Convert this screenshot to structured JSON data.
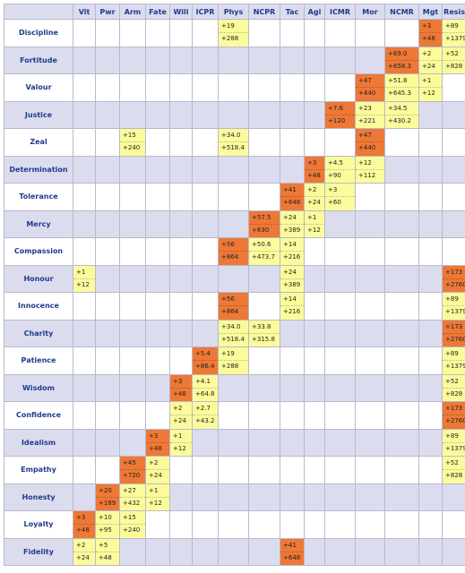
{
  "columns": [
    "Vit",
    "Pwr",
    "Arm",
    "Fate",
    "Will",
    "ICPR",
    "Phys",
    "NCPR",
    "Tac",
    "Agi",
    "ICMR",
    "Mor",
    "NCMR",
    "Mgt",
    "Resist"
  ],
  "colors": {
    "low": "#fbfb9c",
    "high": "#ee7836",
    "header_bg": "#dcdcef",
    "header_text": "#1e3c8c"
  },
  "rows": [
    {
      "name": "Discipline",
      "cells": [
        {
          "col": 6,
          "top": "+19",
          "bottom": "+288",
          "level": "low"
        },
        {
          "col": 13,
          "top": "+3",
          "bottom": "+48",
          "level": "high"
        },
        {
          "col": 14,
          "top": "+89",
          "bottom": "+1379",
          "level": "low"
        }
      ]
    },
    {
      "name": "Fortitude",
      "cells": [
        {
          "col": 12,
          "top": "+69.0",
          "bottom": "+658.3",
          "level": "high"
        },
        {
          "col": 13,
          "top": "+2",
          "bottom": "+24",
          "level": "low"
        },
        {
          "col": 14,
          "top": "+52",
          "bottom": "+828",
          "level": "low"
        }
      ]
    },
    {
      "name": "Valour",
      "cells": [
        {
          "col": 11,
          "top": "+47",
          "bottom": "+440",
          "level": "high"
        },
        {
          "col": 12,
          "top": "+51.8",
          "bottom": "+645.3",
          "level": "low"
        },
        {
          "col": 13,
          "top": "+1",
          "bottom": "+12",
          "level": "low"
        }
      ]
    },
    {
      "name": "Justice",
      "cells": [
        {
          "col": 10,
          "top": "+7.6",
          "bottom": "+120",
          "level": "high"
        },
        {
          "col": 11,
          "top": "+23",
          "bottom": "+221",
          "level": "low"
        },
        {
          "col": 12,
          "top": "+34.5",
          "bottom": "+430.2",
          "level": "low"
        }
      ]
    },
    {
      "name": "Zeal",
      "cells": [
        {
          "col": 2,
          "top": "+15",
          "bottom": "+240",
          "level": "low"
        },
        {
          "col": 6,
          "top": "+34.0",
          "bottom": "+518.4",
          "level": "low"
        },
        {
          "col": 11,
          "top": "+47",
          "bottom": "+440",
          "level": "high"
        }
      ]
    },
    {
      "name": "Determination",
      "cells": [
        {
          "col": 9,
          "top": "+3",
          "bottom": "+48",
          "level": "high"
        },
        {
          "col": 10,
          "top": "+4.5",
          "bottom": "+90",
          "level": "low"
        },
        {
          "col": 11,
          "top": "+12",
          "bottom": "+112",
          "level": "low"
        }
      ]
    },
    {
      "name": "Tolerance",
      "cells": [
        {
          "col": 8,
          "top": "+41",
          "bottom": "+648",
          "level": "high"
        },
        {
          "col": 9,
          "top": "+2",
          "bottom": "+24",
          "level": "low"
        },
        {
          "col": 10,
          "top": "+3",
          "bottom": "+60",
          "level": "low"
        }
      ]
    },
    {
      "name": "Mercy",
      "cells": [
        {
          "col": 7,
          "top": "+57.5",
          "bottom": "+630",
          "level": "high"
        },
        {
          "col": 8,
          "top": "+24",
          "bottom": "+389",
          "level": "low"
        },
        {
          "col": 9,
          "top": "+1",
          "bottom": "+12",
          "level": "low"
        }
      ]
    },
    {
      "name": "Compassion",
      "cells": [
        {
          "col": 6,
          "top": "+56",
          "bottom": "+864",
          "level": "high"
        },
        {
          "col": 7,
          "top": "+50.6",
          "bottom": "+473.7",
          "level": "low"
        },
        {
          "col": 8,
          "top": "+14",
          "bottom": "+216",
          "level": "low"
        }
      ]
    },
    {
      "name": "Honour",
      "cells": [
        {
          "col": 0,
          "top": "+1",
          "bottom": "+12",
          "level": "low"
        },
        {
          "col": 8,
          "top": "+24",
          "bottom": "+389",
          "level": "low"
        },
        {
          "col": 14,
          "top": "+173",
          "bottom": "+2760",
          "level": "high"
        }
      ]
    },
    {
      "name": "Innocence",
      "cells": [
        {
          "col": 6,
          "top": "+56",
          "bottom": "+864",
          "level": "high"
        },
        {
          "col": 8,
          "top": "+14",
          "bottom": "+216",
          "level": "low"
        },
        {
          "col": 14,
          "top": "+89",
          "bottom": "+1379",
          "level": "low"
        }
      ]
    },
    {
      "name": "Charity",
      "cells": [
        {
          "col": 6,
          "top": "+34.0",
          "bottom": "+518.4",
          "level": "low"
        },
        {
          "col": 7,
          "top": "+33.8",
          "bottom": "+315.8",
          "level": "low"
        },
        {
          "col": 14,
          "top": "+173",
          "bottom": "+2760",
          "level": "high"
        }
      ]
    },
    {
      "name": "Patience",
      "cells": [
        {
          "col": 5,
          "top": "+5.4",
          "bottom": "+86.4",
          "level": "high"
        },
        {
          "col": 6,
          "top": "+19",
          "bottom": "+288",
          "level": "low"
        },
        {
          "col": 14,
          "top": "+89",
          "bottom": "+1379",
          "level": "low"
        }
      ]
    },
    {
      "name": "Wisdom",
      "cells": [
        {
          "col": 4,
          "top": "+3",
          "bottom": "+48",
          "level": "high"
        },
        {
          "col": 5,
          "top": "+4.1",
          "bottom": "+64.8",
          "level": "low"
        },
        {
          "col": 14,
          "top": "+52",
          "bottom": "+828",
          "level": "low"
        }
      ]
    },
    {
      "name": "Confidence",
      "cells": [
        {
          "col": 4,
          "top": "+2",
          "bottom": "+24",
          "level": "low"
        },
        {
          "col": 5,
          "top": "+2.7",
          "bottom": "+43.2",
          "level": "low"
        },
        {
          "col": 14,
          "top": "+173",
          "bottom": "+2760",
          "level": "high"
        }
      ]
    },
    {
      "name": "Idealism",
      "cells": [
        {
          "col": 3,
          "top": "+3",
          "bottom": "+48",
          "level": "high"
        },
        {
          "col": 4,
          "top": "+1",
          "bottom": "+12",
          "level": "low"
        },
        {
          "col": 14,
          "top": "+89",
          "bottom": "+1379",
          "level": "low"
        }
      ]
    },
    {
      "name": "Empathy",
      "cells": [
        {
          "col": 2,
          "top": "+45",
          "bottom": "+720",
          "level": "high"
        },
        {
          "col": 3,
          "top": "+2",
          "bottom": "+24",
          "level": "low"
        },
        {
          "col": 14,
          "top": "+52",
          "bottom": "+828",
          "level": "low"
        }
      ]
    },
    {
      "name": "Honesty",
      "cells": [
        {
          "col": 1,
          "top": "+20",
          "bottom": "+189",
          "level": "high"
        },
        {
          "col": 2,
          "top": "+27",
          "bottom": "+432",
          "level": "low"
        },
        {
          "col": 3,
          "top": "+1",
          "bottom": "+12",
          "level": "low"
        }
      ]
    },
    {
      "name": "Loyalty",
      "cells": [
        {
          "col": 0,
          "top": "+3",
          "bottom": "+48",
          "level": "high"
        },
        {
          "col": 1,
          "top": "+10",
          "bottom": "+95",
          "level": "low"
        },
        {
          "col": 2,
          "top": "+15",
          "bottom": "+240",
          "level": "low"
        }
      ]
    },
    {
      "name": "Fidelity",
      "cells": [
        {
          "col": 0,
          "top": "+2",
          "bottom": "+24",
          "level": "low"
        },
        {
          "col": 1,
          "top": "+5",
          "bottom": "+48",
          "level": "low"
        },
        {
          "col": 8,
          "top": "+41",
          "bottom": "+648",
          "level": "high"
        }
      ]
    }
  ]
}
